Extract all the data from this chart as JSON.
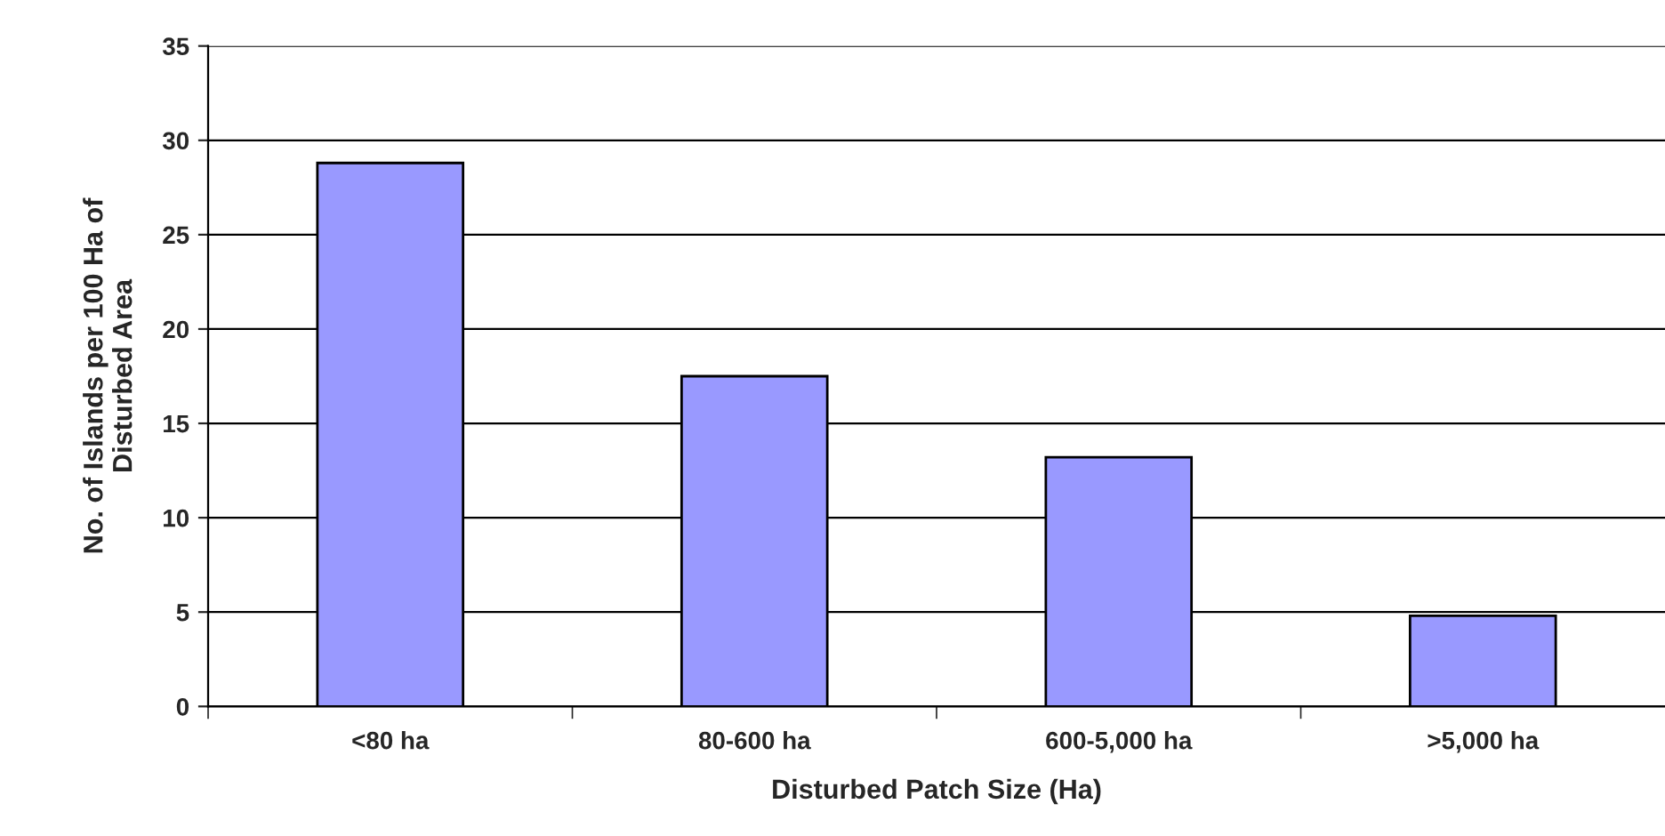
{
  "chart_data": {
    "type": "bar",
    "xlabel": "Disturbed Patch Size (Ha)",
    "ylabel": "No. of Islands per 100 Ha of\nDisturbed Area",
    "categories": [
      "<80 ha",
      "80-600 ha",
      "600-5,000 ha",
      ">5,000 ha"
    ],
    "values": [
      28.8,
      17.5,
      13.2,
      4.8
    ],
    "color": "#9999ff",
    "ylim": [
      0,
      35
    ],
    "yticks": [
      0,
      5,
      10,
      15,
      20,
      25,
      30,
      35
    ],
    "grid": "y",
    "legend": false
  }
}
